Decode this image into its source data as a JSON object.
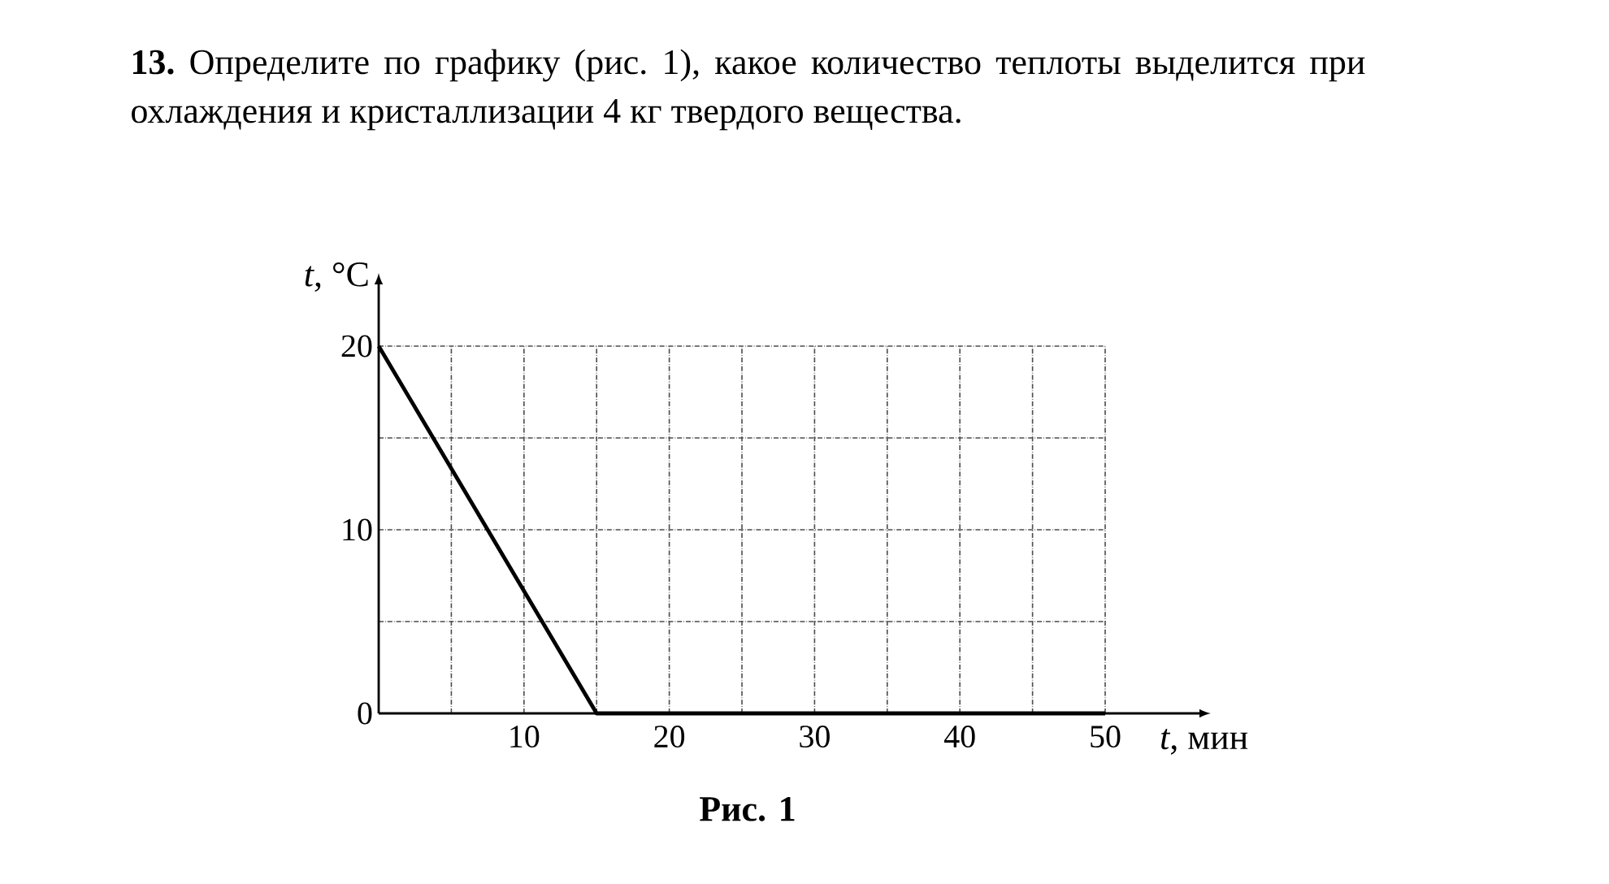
{
  "chart_data": {
    "type": "line",
    "title": "**13.** Определите по графику (рис. 1), какое количество теплоты выделится при охлаждения и кристаллизации 4 кг твердого вещества.",
    "xlabel": "*t*, мин",
    "ylabel": "*t*, °C",
    "annotations": [
      "Рис. 1"
    ],
    "x": [
      0,
      15,
      50
    ],
    "series": [
      {
        "color": "#000000",
        "values": [
          20,
          0,
          0
        ]
      }
    ],
    "xlim": [
      0,
      50
    ],
    "ylim": [
      0,
      20
    ],
    "xticks": [
      {
        "value": 0,
        "label": null
      },
      {
        "value": 5,
        "label": null
      },
      10,
      {
        "value": 15,
        "label": null
      },
      20,
      {
        "value": 25,
        "label": null
      },
      30,
      {
        "value": 35,
        "label": null
      },
      40,
      {
        "value": 45,
        "label": null
      },
      50
    ],
    "yticks": [
      0,
      {
        "value": 5,
        "label": null
      },
      10,
      {
        "value": 15,
        "label": null
      },
      20
    ],
    "grid": true,
    "marker": "none",
    "line_style": "solid"
  }
}
